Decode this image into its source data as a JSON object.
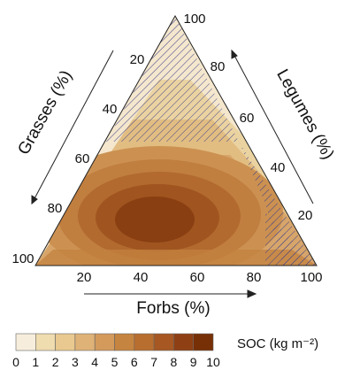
{
  "chart_data": {
    "type": "heatmap",
    "subtype": "ternary-contour",
    "axes": {
      "forbs": {
        "label": "Forbs (%)",
        "ticks": [
          "20",
          "40",
          "60",
          "80",
          "100"
        ]
      },
      "legumes": {
        "label": "Legumes (%)",
        "ticks": [
          "20",
          "40",
          "60",
          "80",
          "100"
        ]
      },
      "grasses": {
        "label": "Grasses (%)",
        "ticks": [
          "20",
          "40",
          "60",
          "80",
          "100"
        ]
      }
    },
    "colorbar": {
      "title": "SOC (kg m⁻²)",
      "ticks": [
        "0",
        "1",
        "2",
        "3",
        "4",
        "5",
        "6",
        "7",
        "8",
        "9",
        "10"
      ],
      "colors": [
        "#f6eddc",
        "#efdcaf",
        "#e9c98f",
        "#dfb277",
        "#d39a5c",
        "#c5843f",
        "#b86e2f",
        "#a65722",
        "#8e4014",
        "#773006"
      ]
    },
    "contours": [
      {
        "level": 10,
        "shape": "dark core",
        "forbs_center": 45,
        "legumes_center": 12
      }
    ],
    "hatched_regions": [
      "top of triangle (legume-dominant)",
      "right edge (high legumes)",
      "bottom-right corner (forb-dominant)"
    ]
  }
}
